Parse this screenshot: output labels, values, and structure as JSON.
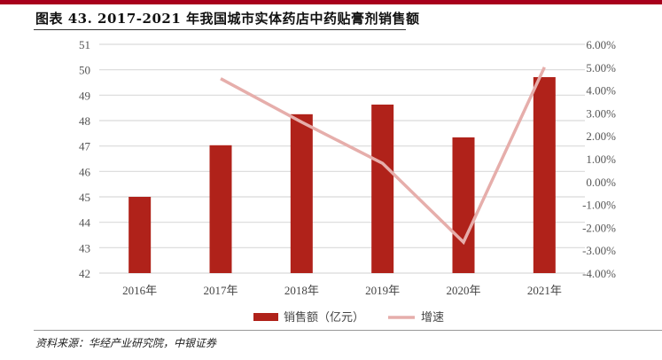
{
  "title": "图表 43. 2017-2021 年我国城市实体药店中药贴膏剂销售额",
  "source": "资料来源：华经产业研究院，中银证券",
  "chart_data": {
    "type": "bar+line",
    "categories": [
      "2016年",
      "2017年",
      "2018年",
      "2019年",
      "2020年",
      "2021年"
    ],
    "series": [
      {
        "name": "销售额（亿元）",
        "type": "bar",
        "axis": "left",
        "color": "#b0221a",
        "values": [
          45.0,
          47.03,
          48.25,
          48.63,
          47.34,
          49.71
        ]
      },
      {
        "name": "增速",
        "type": "line",
        "axis": "right",
        "color": "#e6aeab",
        "values": [
          null,
          4.5,
          2.6,
          0.8,
          -2.65,
          5.0
        ]
      }
    ],
    "ylim_left": [
      42,
      51
    ],
    "yticks_left": [
      "42",
      "43",
      "44",
      "45",
      "46",
      "47",
      "48",
      "49",
      "50",
      "51"
    ],
    "ylim_right": [
      -4,
      6
    ],
    "yticks_right": [
      "-4.00%",
      "-3.00%",
      "-2.00%",
      "-1.00%",
      "0.00%",
      "1.00%",
      "2.00%",
      "3.00%",
      "4.00%",
      "5.00%",
      "6.00%"
    ],
    "grid": true,
    "legend": "bottom"
  }
}
